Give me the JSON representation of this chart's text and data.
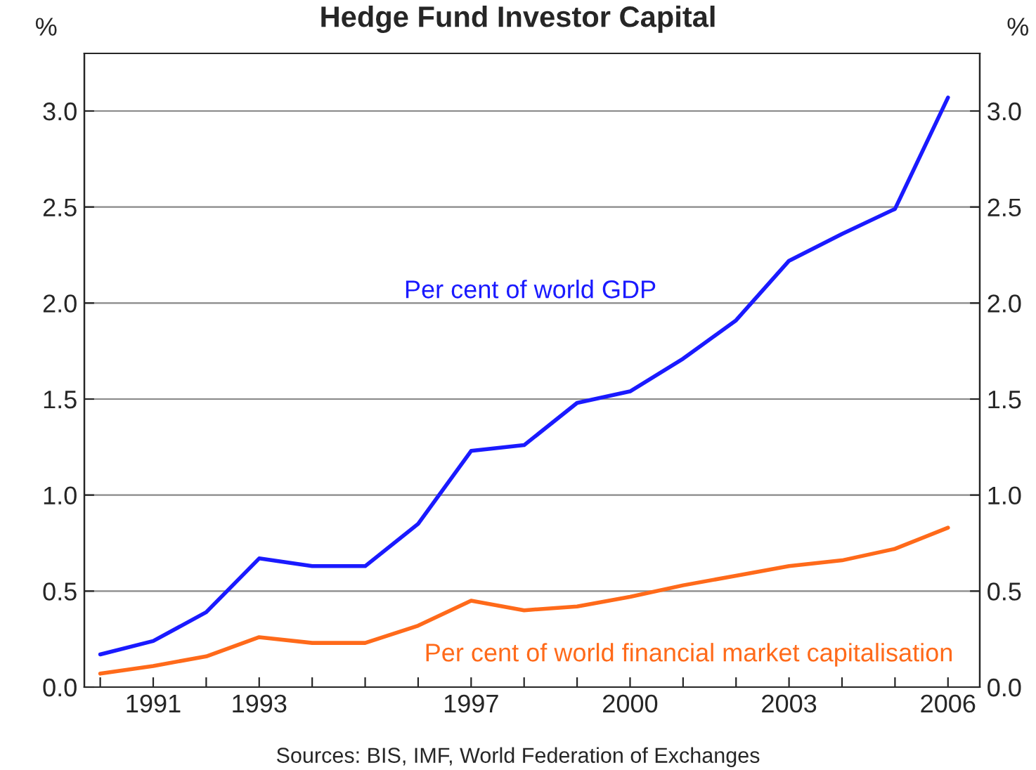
{
  "chart_data": {
    "type": "line",
    "title": "Hedge Fund Investor Capital",
    "x": [
      1990,
      1991,
      1992,
      1993,
      1994,
      1995,
      1996,
      1997,
      1998,
      1999,
      2000,
      2001,
      2002,
      2003,
      2004,
      2005,
      2006
    ],
    "series": [
      {
        "name": "Per cent of world GDP",
        "color": "#1a1aff",
        "values": [
          0.17,
          0.24,
          0.39,
          0.67,
          0.63,
          0.63,
          0.85,
          1.23,
          1.26,
          1.48,
          1.54,
          1.71,
          1.91,
          2.22,
          2.36,
          2.49,
          3.07
        ]
      },
      {
        "name": "Per cent of world financial market capitalisation",
        "color": "#ff6a1a",
        "values": [
          0.07,
          0.11,
          0.16,
          0.26,
          0.23,
          0.23,
          0.32,
          0.45,
          0.4,
          0.42,
          0.47,
          0.53,
          0.58,
          0.63,
          0.66,
          0.72,
          0.83
        ]
      }
    ],
    "xlim": [
      1989.7,
      2006.6
    ],
    "xticks": [
      {
        "value": 1990,
        "label": null
      },
      {
        "value": 1991,
        "label": "1991"
      },
      {
        "value": 1992,
        "label": null
      },
      {
        "value": 1993,
        "label": "1993"
      },
      {
        "value": 1994,
        "label": null
      },
      {
        "value": 1995,
        "label": null
      },
      {
        "value": 1996,
        "label": null
      },
      {
        "value": 1997,
        "label": "1997"
      },
      {
        "value": 1998,
        "label": null
      },
      {
        "value": 1999,
        "label": null
      },
      {
        "value": 2000,
        "label": "2000"
      },
      {
        "value": 2001,
        "label": null
      },
      {
        "value": 2002,
        "label": null
      },
      {
        "value": 2003,
        "label": "2003"
      },
      {
        "value": 2004,
        "label": null
      },
      {
        "value": 2005,
        "label": null
      },
      {
        "value": 2006,
        "label": "2006"
      }
    ],
    "ylim": [
      0,
      3.3
    ],
    "yticks": [
      {
        "value": 0,
        "label": "0.0"
      },
      {
        "value": 0.5,
        "label": "0.5"
      },
      {
        "value": 1,
        "label": "1.0"
      },
      {
        "value": 1.5,
        "label": "1.5"
      },
      {
        "value": 2,
        "label": "2.0"
      },
      {
        "value": 2.5,
        "label": "2.5"
      },
      {
        "value": 3,
        "label": "3.0"
      }
    ],
    "y2lim": [
      0,
      3.3
    ],
    "y2ticks": [
      {
        "value": 0,
        "label": "0.0"
      },
      {
        "value": 0.5,
        "label": "0.5"
      },
      {
        "value": 1,
        "label": "1.0"
      },
      {
        "value": 1.5,
        "label": "1.5"
      },
      {
        "value": 2,
        "label": "2.0"
      },
      {
        "value": 2.5,
        "label": "2.5"
      },
      {
        "value": 3,
        "label": "3.0"
      }
    ],
    "ylabel": "%",
    "y2label": "%",
    "grid": "y",
    "annotations": [
      "Sources: BIS, IMF, World Federation of Exchanges"
    ]
  }
}
